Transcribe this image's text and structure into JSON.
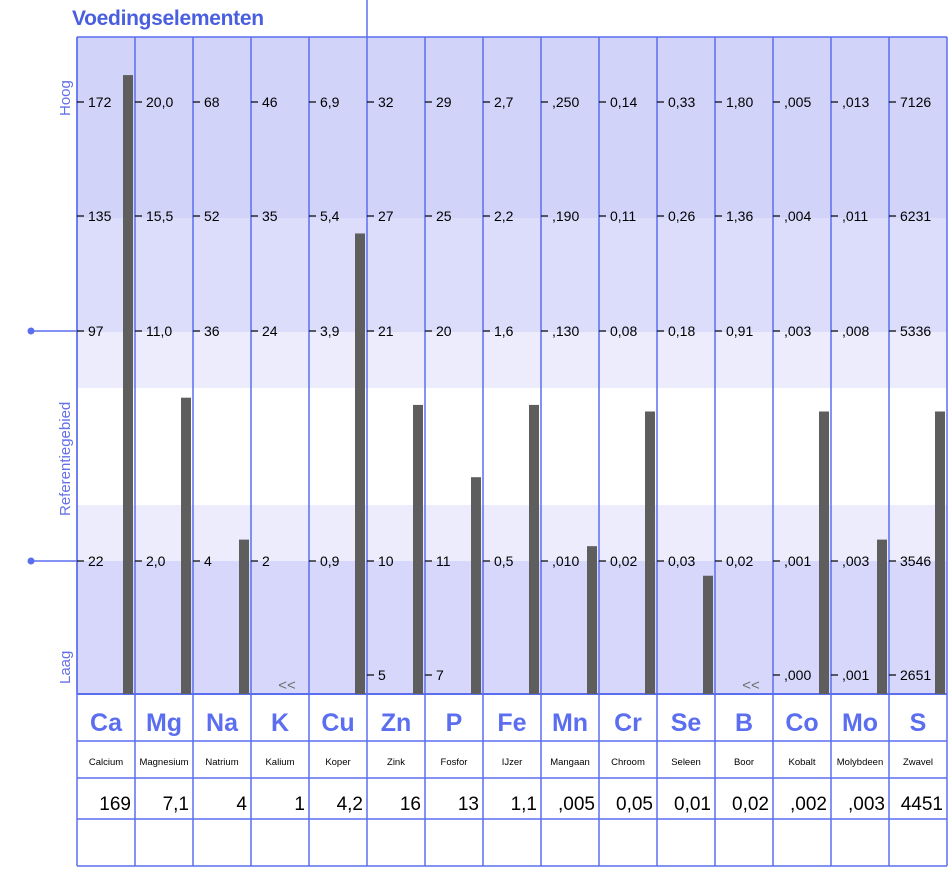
{
  "title": "Voedingselementen",
  "side_labels": {
    "high": "Hoog",
    "reference": "Referentiegebied",
    "low": "Laag"
  },
  "below_marker": "<<",
  "colors": {
    "line": "#5b6ef0",
    "band_high": "#d2d3f9",
    "band_mid": "#dcdcfb",
    "band_ref_edge": "#ececfc",
    "band_low": "#d6d7fa",
    "bar": "#5e5e5e",
    "text": "#000000",
    "symbol": "#5b6ef0"
  },
  "chart_data": {
    "type": "bar",
    "title": "Voedingselementen",
    "categories": [
      "Ca",
      "Mg",
      "Na",
      "K",
      "Cu",
      "Zn",
      "P",
      "Fe",
      "Mn",
      "Cr",
      "Se",
      "B",
      "Co",
      "Mo",
      "S"
    ],
    "names": [
      "Calcium",
      "Magnesium",
      "Natrium",
      "Kalium",
      "Koper",
      "Zink",
      "Fosfor",
      "IJzer",
      "Mangaan",
      "Chroom",
      "Seleen",
      "Boor",
      "Kobalt",
      "Molybdeen",
      "Zwavel"
    ],
    "values_text": [
      "169",
      "7,1",
      "4",
      "1",
      "4,2",
      "16",
      "13",
      "1,1",
      ",005",
      "0,05",
      "0,01",
      "0,02",
      ",002",
      ",003",
      "4451"
    ],
    "values": [
      169,
      7.1,
      4,
      1,
      4.2,
      16,
      13,
      1.1,
      0.005,
      0.05,
      0.01,
      0.02,
      0.002,
      0.003,
      4451
    ],
    "scale_labels": {
      "hoog": [
        "172",
        "20,0",
        "68",
        "46",
        "6,9",
        "32",
        "29",
        "2,7",
        ",250",
        "0,14",
        "0,33",
        "1,80",
        ",005",
        ",013",
        "7126"
      ],
      "upper": [
        "135",
        "15,5",
        "52",
        "35",
        "5,4",
        "27",
        "25",
        "2,2",
        ",190",
        "0,11",
        "0,26",
        "1,36",
        ",004",
        ",011",
        "6231"
      ],
      "ref_high": [
        "97",
        "11,0",
        "36",
        "24",
        "3,9",
        "21",
        "20",
        "1,6",
        ",130",
        "0,08",
        "0,18",
        "0,91",
        ",003",
        ",008",
        "5336"
      ],
      "ref_low": [
        "22",
        "2,0",
        "4",
        "2",
        "0,9",
        "10",
        "11",
        "0,5",
        ",010",
        "0,02",
        "0,03",
        "0,02",
        ",001",
        ",003",
        "3546"
      ],
      "laag": [
        "",
        "",
        "",
        "",
        "",
        "5",
        "7",
        "",
        "",
        "",
        "",
        "",
        ",000",
        ",001",
        "2651"
      ]
    },
    "bar_level": [
      0.942,
      0.451,
      0.235,
      null,
      0.701,
      0.44,
      0.33,
      0.44,
      0.225,
      0.43,
      0.18,
      null,
      0.43,
      0.235,
      0.43
    ],
    "below_range": [
      false,
      false,
      false,
      true,
      false,
      false,
      false,
      false,
      false,
      false,
      false,
      true,
      false,
      false,
      false
    ]
  }
}
